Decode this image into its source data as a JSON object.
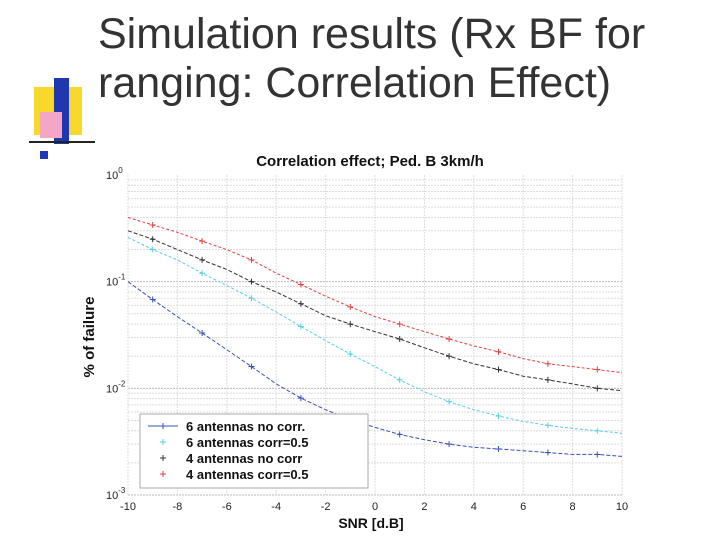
{
  "slide": {
    "title_line1": "Simulation results (Rx BF for",
    "title_line2": "ranging: Correlation Effect)",
    "colors": {
      "yellow": "#f7d82b",
      "blue": "#1f37b0",
      "pink": "#f3a6c6",
      "title": "#333333"
    }
  },
  "chart_data": {
    "type": "line",
    "title": "Correlation effect; Ped. B 3km/h",
    "xlabel": "SNR [d.B]",
    "ylabel": "% of failure",
    "x_ticks": [
      "-10",
      "-8",
      "-6",
      "-4",
      "-2",
      "0",
      "2",
      "4",
      "6",
      "8",
      "10"
    ],
    "y_tick_labels": [
      {
        "base": "10",
        "exp": "0",
        "value": 1
      },
      {
        "base": "10",
        "exp": "-1",
        "value": 0.1
      },
      {
        "base": "10",
        "exp": "-2",
        "value": 0.01
      },
      {
        "base": "10",
        "exp": "-3",
        "value": 0.001
      }
    ],
    "xlim": [
      -10,
      10
    ],
    "ylim": [
      0.001,
      1
    ],
    "yscale": "log",
    "grid": true,
    "legend_position": "bottom-left",
    "x": [
      -10,
      -9,
      -8,
      -7,
      -6,
      -5,
      -4,
      -3,
      -2,
      -1,
      0,
      1,
      2,
      3,
      4,
      5,
      6,
      7,
      8,
      9,
      10
    ],
    "series": [
      {
        "name": "6 antennas no corr.",
        "color": "#3a4fb8",
        "marker": "+",
        "values": [
          0.1,
          0.068,
          0.047,
          0.033,
          0.023,
          0.016,
          0.011,
          0.0081,
          0.0063,
          0.0051,
          0.0043,
          0.0037,
          0.0033,
          0.003,
          0.0028,
          0.0027,
          0.0026,
          0.0025,
          0.0024,
          0.0024,
          0.0023
        ]
      },
      {
        "name": "6  antennas corr=0.5",
        "color": "#55d0e0",
        "marker": "+",
        "values": [
          0.26,
          0.2,
          0.16,
          0.12,
          0.092,
          0.07,
          0.052,
          0.038,
          0.028,
          0.021,
          0.016,
          0.012,
          0.0093,
          0.0075,
          0.0063,
          0.0055,
          0.0049,
          0.0045,
          0.0042,
          0.004,
          0.0038
        ]
      },
      {
        "name": "4  antennas no corr",
        "color": "#333333",
        "marker": "+",
        "values": [
          0.3,
          0.25,
          0.2,
          0.16,
          0.13,
          0.1,
          0.08,
          0.062,
          0.048,
          0.04,
          0.034,
          0.029,
          0.024,
          0.02,
          0.017,
          0.015,
          0.013,
          0.012,
          0.011,
          0.01,
          0.0095
        ]
      },
      {
        "name": "4  antennas corr=0.5",
        "color": "#e04040",
        "marker": "+",
        "values": [
          0.4,
          0.34,
          0.29,
          0.24,
          0.2,
          0.16,
          0.12,
          0.094,
          0.073,
          0.058,
          0.047,
          0.04,
          0.034,
          0.029,
          0.025,
          0.022,
          0.019,
          0.017,
          0.016,
          0.015,
          0.014
        ]
      }
    ]
  }
}
